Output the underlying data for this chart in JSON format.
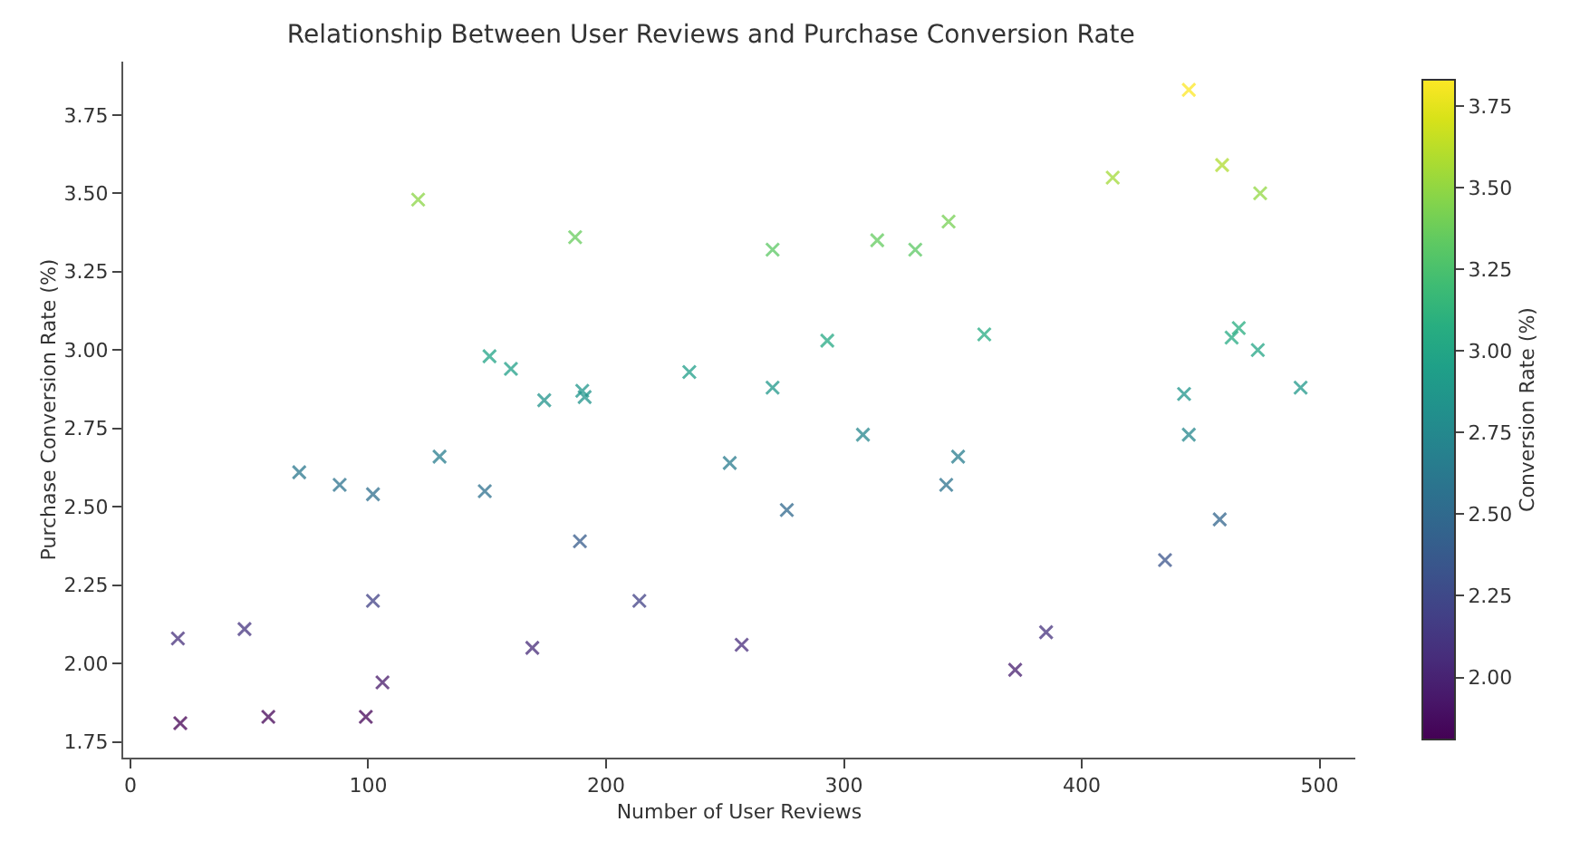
{
  "chart_data": {
    "type": "scatter",
    "title": "Relationship Between User Reviews and Purchase Conversion Rate",
    "xlabel": "Number of User Reviews",
    "ylabel": "Purchase Conversion Rate (%)",
    "clabel": "Conversion Rate (%)",
    "marker": "cross",
    "grid": false,
    "x": [
      20,
      21,
      48,
      58,
      71,
      88,
      102,
      102,
      99,
      106,
      121,
      130,
      149,
      151,
      160,
      169,
      174,
      187,
      189,
      190,
      191,
      214,
      235,
      252,
      257,
      270,
      270,
      276,
      293,
      308,
      314,
      330,
      343,
      344,
      348,
      359,
      372,
      385,
      413,
      435,
      445,
      443,
      445,
      459,
      458,
      463,
      466,
      475,
      474,
      492
    ],
    "values": [
      2.08,
      1.81,
      2.11,
      1.83,
      2.61,
      2.57,
      2.54,
      2.2,
      1.83,
      1.94,
      3.48,
      2.66,
      2.55,
      2.98,
      2.94,
      2.05,
      2.84,
      3.36,
      2.39,
      2.87,
      2.85,
      2.2,
      2.93,
      2.64,
      2.06,
      3.32,
      2.88,
      2.49,
      3.03,
      2.73,
      3.35,
      3.32,
      2.57,
      3.41,
      2.66,
      3.05,
      1.98,
      2.1,
      3.55,
      2.33,
      3.83,
      2.86,
      2.73,
      3.59,
      2.46,
      3.04,
      3.07,
      3.5,
      3,
      2.88
    ],
    "cvalues": [
      2.08,
      1.81,
      2.11,
      1.83,
      2.61,
      2.57,
      2.54,
      2.2,
      1.83,
      1.94,
      3.48,
      2.66,
      2.55,
      2.98,
      2.94,
      2.05,
      2.84,
      3.36,
      2.39,
      2.87,
      2.85,
      2.2,
      2.93,
      2.64,
      2.06,
      3.32,
      2.88,
      2.49,
      3.03,
      2.73,
      3.35,
      3.32,
      2.57,
      3.41,
      2.66,
      3.05,
      1.98,
      2.1,
      3.55,
      2.33,
      3.83,
      2.86,
      2.73,
      3.59,
      2.46,
      3.04,
      3.07,
      3.5,
      3,
      2.88
    ],
    "xlim": [
      -3,
      515
    ],
    "xticks": [
      0,
      100,
      200,
      300,
      400,
      500
    ],
    "ylim": [
      1.7,
      3.92
    ],
    "yticks": [
      {
        "value": 1.75,
        "label": "1.75"
      },
      {
        "value": 2,
        "label": "2.00"
      },
      {
        "value": 2.25,
        "label": "2.25"
      },
      {
        "value": 2.5,
        "label": "2.50"
      },
      {
        "value": 2.75,
        "label": "2.75"
      },
      {
        "value": 3,
        "label": "3.00"
      },
      {
        "value": 3.25,
        "label": "3.25"
      },
      {
        "value": 3.5,
        "label": "3.50"
      },
      {
        "value": 3.75,
        "label": "3.75"
      }
    ],
    "clim": [
      1.81,
      3.83
    ],
    "cticks": [
      {
        "value": 2,
        "label": "2.00"
      },
      {
        "value": 2.25,
        "label": "2.25"
      },
      {
        "value": 2.5,
        "label": "2.50"
      },
      {
        "value": 2.75,
        "label": "2.75"
      },
      {
        "value": 3,
        "label": "3.00"
      },
      {
        "value": 3.25,
        "label": "3.25"
      },
      {
        "value": 3.5,
        "label": "3.50"
      },
      {
        "value": 3.75,
        "label": "3.75"
      }
    ]
  }
}
